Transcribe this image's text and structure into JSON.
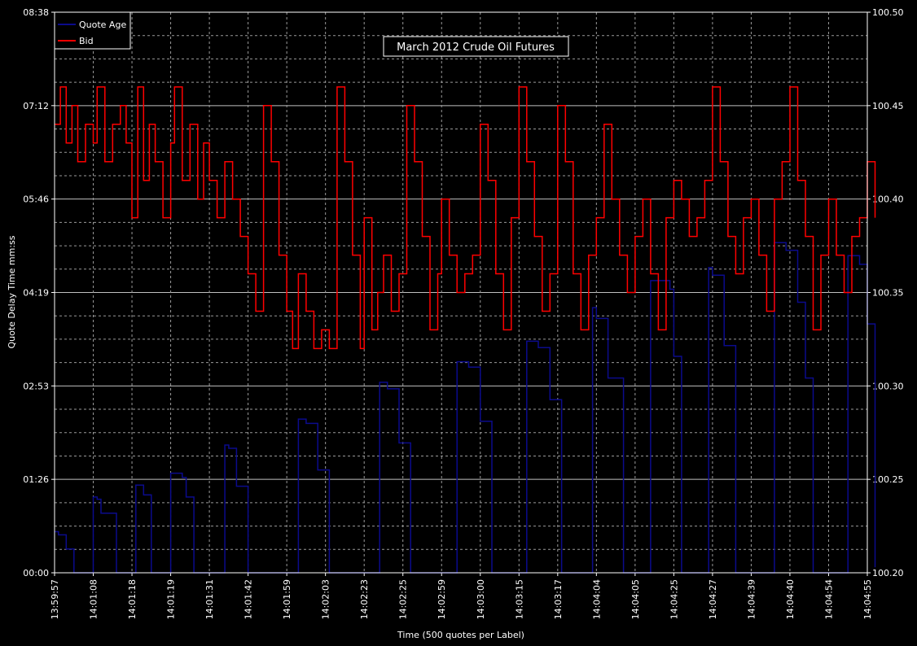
{
  "chart_data": {
    "type": "line",
    "title": "March 2012 Crude Oil Futures",
    "xlabel": "Time (500 quotes per Label)",
    "ylabel_left": "Quote Delay Time mm:ss",
    "left_ticks": [
      "00:00",
      "01:26",
      "02:53",
      "04:19",
      "05:46",
      "07:12",
      "08:38"
    ],
    "right_ticks": [
      "100.20",
      "100.25",
      "100.30",
      "100.35",
      "100.40",
      "100.45",
      "100.50"
    ],
    "ylim_left_seconds": [
      0,
      518
    ],
    "ylim_right": [
      100.2,
      100.5
    ],
    "x_labels": [
      "13:59:57",
      "14:01:08",
      "14:01:18",
      "14:01:19",
      "14:01:31",
      "14:01:42",
      "14:01:59",
      "14:02:03",
      "14:02:23",
      "14:02:25",
      "14:02:59",
      "14:03:00",
      "14:03:15",
      "14:03:17",
      "14:04:04",
      "14:04:05",
      "14:04:25",
      "14:04:27",
      "14:04:39",
      "14:04:40",
      "14:04:54",
      "14:04:55"
    ],
    "grid": true,
    "legend_position": "top-left",
    "colors": {
      "background": "#000000",
      "grid": "#ffffff",
      "quote_age": "#0b0b8c",
      "bid": "#ff0000",
      "text": "#ffffff"
    },
    "series": [
      {
        "name": "Quote Age",
        "axis": "left",
        "unit": "seconds",
        "label_index": [
          0,
          0.1,
          0.3,
          0.5,
          0.9,
          1.0,
          1.1,
          1.2,
          1.6,
          2.0,
          2.1,
          2.3,
          2.5,
          2.6,
          3.0,
          3.3,
          3.4,
          3.6,
          3.8,
          4.4,
          4.5,
          4.7,
          5.0,
          5.3,
          6.0,
          6.3,
          6.5,
          6.8,
          7.1,
          7.6,
          8.3,
          8.4,
          8.6,
          8.9,
          9.2,
          9.6,
          10.3,
          10.4,
          10.7,
          11.0,
          11.3,
          11.6,
          12.1,
          12.2,
          12.5,
          12.8,
          13.1,
          13.3,
          13.6,
          13.9,
          14.0,
          14.3,
          14.7,
          15.0,
          15.2,
          15.4,
          15.9,
          16.0,
          16.2,
          16.4,
          16.7,
          16.9,
          17.0,
          17.3,
          17.6,
          18.0,
          18.2,
          18.6,
          18.9,
          19.2,
          19.4,
          19.6,
          20.0,
          20.3,
          20.5,
          20.8,
          21.0,
          21.2
        ],
        "values": [
          38,
          35,
          22,
          0,
          0,
          70,
          68,
          55,
          0,
          0,
          81,
          72,
          0,
          0,
          92,
          88,
          70,
          0,
          0,
          118,
          115,
          80,
          0,
          0,
          0,
          142,
          138,
          95,
          0,
          0,
          0,
          176,
          170,
          120,
          0,
          0,
          0,
          195,
          190,
          140,
          0,
          0,
          0,
          214,
          208,
          160,
          0,
          0,
          0,
          245,
          235,
          180,
          0,
          0,
          0,
          270,
          262,
          200,
          0,
          0,
          0,
          282,
          275,
          210,
          0,
          0,
          0,
          305,
          298,
          250,
          180,
          0,
          0,
          0,
          293,
          285,
          230,
          5
        ]
      },
      {
        "name": "Bid",
        "axis": "right",
        "unit": "price",
        "label_index": [
          0,
          0.15,
          0.3,
          0.45,
          0.6,
          0.8,
          1.0,
          1.1,
          1.3,
          1.5,
          1.7,
          1.85,
          2.0,
          2.15,
          2.3,
          2.45,
          2.6,
          2.8,
          3.0,
          3.1,
          3.3,
          3.5,
          3.7,
          3.85,
          4.0,
          4.2,
          4.4,
          4.6,
          4.8,
          5.0,
          5.2,
          5.4,
          5.6,
          5.8,
          6.0,
          6.15,
          6.3,
          6.5,
          6.7,
          6.9,
          7.1,
          7.3,
          7.5,
          7.7,
          7.9,
          8.0,
          8.2,
          8.35,
          8.5,
          8.7,
          8.9,
          9.1,
          9.3,
          9.5,
          9.7,
          9.9,
          10.0,
          10.2,
          10.4,
          10.6,
          10.8,
          11.0,
          11.2,
          11.4,
          11.6,
          11.8,
          12.0,
          12.2,
          12.4,
          12.6,
          12.8,
          13.0,
          13.2,
          13.4,
          13.6,
          13.8,
          14.0,
          14.2,
          14.4,
          14.6,
          14.8,
          15.0,
          15.2,
          15.4,
          15.6,
          15.8,
          16.0,
          16.2,
          16.4,
          16.6,
          16.8,
          17.0,
          17.2,
          17.4,
          17.6,
          17.8,
          18.0,
          18.2,
          18.4,
          18.6,
          18.8,
          19.0,
          19.2,
          19.4,
          19.6,
          19.8,
          20.0,
          20.2,
          20.4,
          20.6,
          20.8,
          21.0,
          21.2
        ],
        "values": [
          100.44,
          100.46,
          100.43,
          100.45,
          100.42,
          100.44,
          100.43,
          100.46,
          100.42,
          100.44,
          100.45,
          100.43,
          100.39,
          100.46,
          100.41,
          100.44,
          100.42,
          100.39,
          100.43,
          100.46,
          100.41,
          100.44,
          100.4,
          100.43,
          100.41,
          100.39,
          100.42,
          100.4,
          100.38,
          100.36,
          100.34,
          100.45,
          100.42,
          100.37,
          100.34,
          100.32,
          100.36,
          100.34,
          100.32,
          100.33,
          100.32,
          100.46,
          100.42,
          100.37,
          100.32,
          100.39,
          100.33,
          100.35,
          100.37,
          100.34,
          100.36,
          100.45,
          100.42,
          100.38,
          100.33,
          100.36,
          100.4,
          100.37,
          100.35,
          100.36,
          100.37,
          100.44,
          100.41,
          100.36,
          100.33,
          100.39,
          100.46,
          100.42,
          100.38,
          100.34,
          100.36,
          100.45,
          100.42,
          100.36,
          100.33,
          100.37,
          100.39,
          100.44,
          100.4,
          100.37,
          100.35,
          100.38,
          100.4,
          100.36,
          100.33,
          100.39,
          100.41,
          100.4,
          100.38,
          100.39,
          100.41,
          100.46,
          100.42,
          100.38,
          100.36,
          100.39,
          100.4,
          100.37,
          100.34,
          100.4,
          100.42,
          100.46,
          100.41,
          100.38,
          100.33,
          100.37,
          100.4,
          100.37,
          100.35,
          100.38,
          100.39,
          100.42,
          100.39
        ]
      }
    ]
  }
}
